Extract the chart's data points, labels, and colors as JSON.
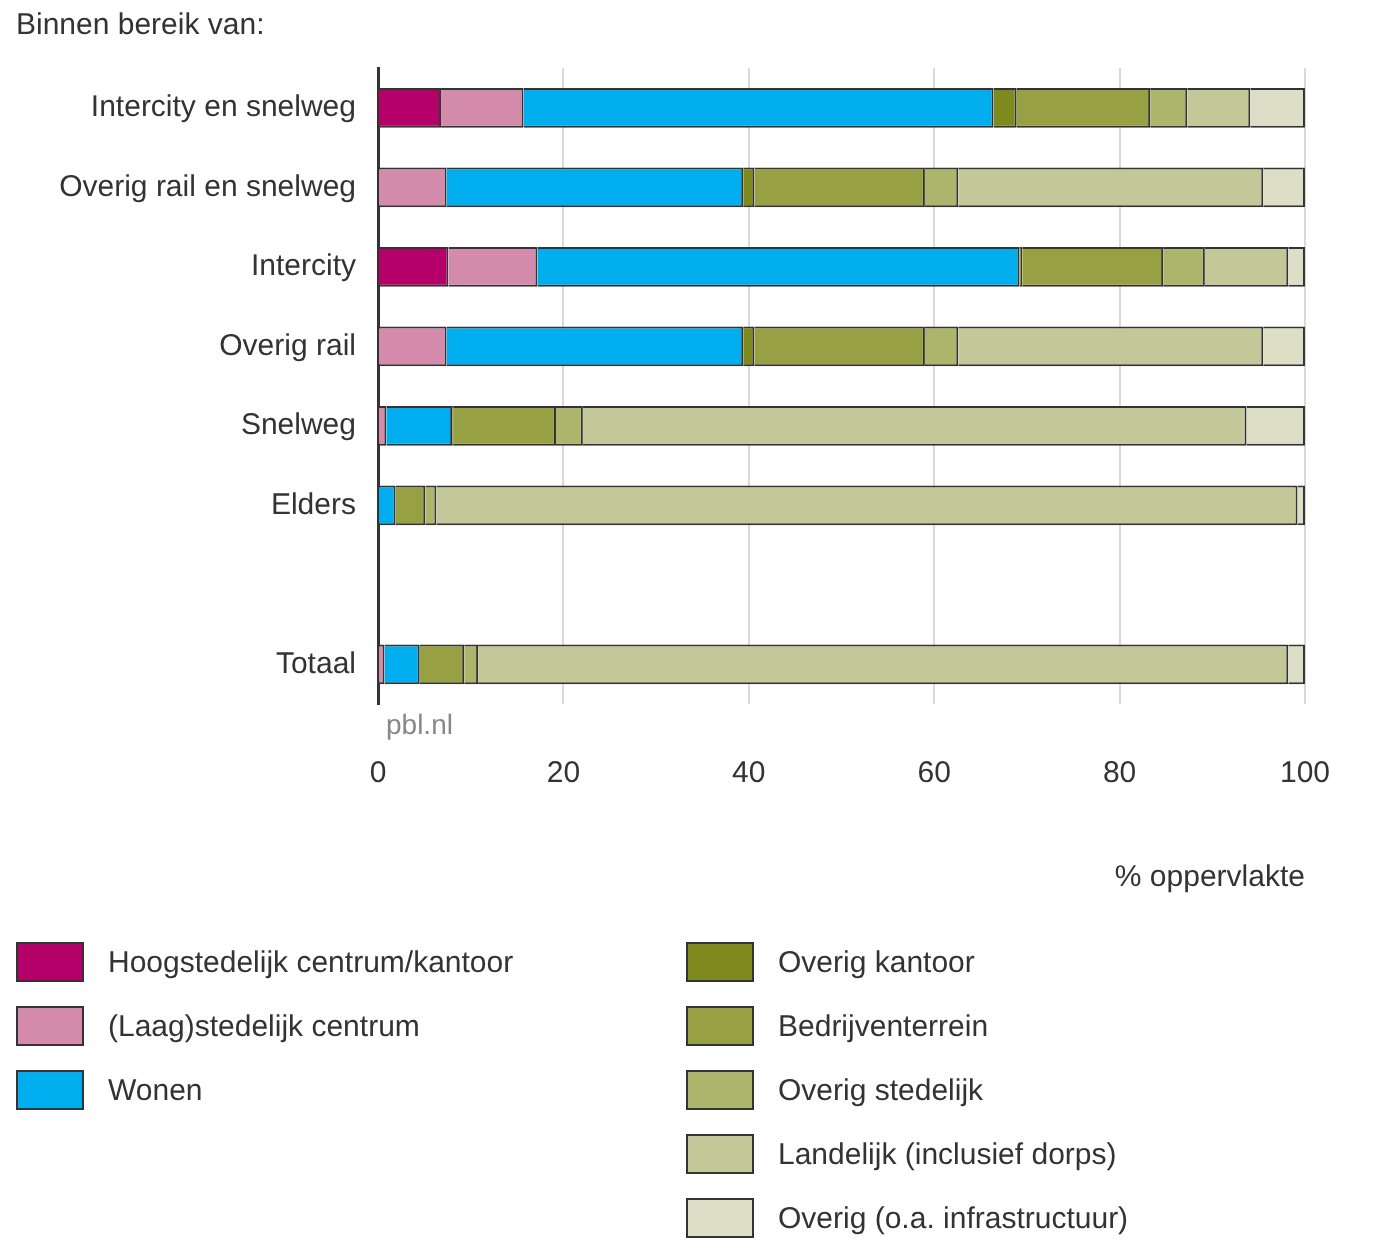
{
  "chart_data": {
    "type": "bar",
    "orientation": "horizontal",
    "stacked": true,
    "ylabel": "Binnen bereik van:",
    "xlabel": "% oppervlakte",
    "categories": [
      "Intercity en snelweg",
      "Overig rail en snelweg",
      "Intercity",
      "Overig rail",
      "Snelweg",
      "Elders",
      null,
      "Totaal"
    ],
    "series": [
      {
        "name": "Hoogstedelijk centrum/kantoor",
        "color": "#b5006a",
        "values": [
          6.8,
          null,
          7.6,
          null,
          0,
          0,
          null,
          0
        ]
      },
      {
        "name": "(Laag)stedelijk centrum",
        "color": "#d48aab",
        "values": [
          8.9,
          7.4,
          9.6,
          7.4,
          0.9,
          null,
          null,
          0.7
        ]
      },
      {
        "name": "Wonen",
        "color": "#00aeef",
        "values": [
          50.7,
          32.0,
          52.0,
          32.0,
          7.1,
          1.9,
          null,
          3.8
        ]
      },
      {
        "name": "Overig kantoor",
        "color": "#7f8a1e",
        "values": [
          2.5,
          1.2,
          0.3,
          1.2,
          0.1,
          0,
          null,
          0
        ]
      },
      {
        "name": "Bedrijventerrein",
        "color": "#97a043",
        "values": [
          14.4,
          18.4,
          15.2,
          18.4,
          11.1,
          3.2,
          null,
          4.8
        ]
      },
      {
        "name": "Overig stedelijk",
        "color": "#adb46c",
        "values": [
          4.0,
          3.6,
          4.5,
          3.6,
          2.9,
          1.2,
          null,
          1.5
        ]
      },
      {
        "name": "Landelijk (inclusief dorps)",
        "color": "#c4c899",
        "values": [
          6.8,
          32.9,
          9.0,
          32.9,
          71.6,
          92.9,
          null,
          87.4
        ]
      },
      {
        "name": "Overig (o.a. infrastructuur)",
        "color": "#dcdfc5",
        "values": [
          5.9,
          4.5,
          1.8,
          4.5,
          6.3,
          0.8,
          null,
          1.8
        ]
      }
    ],
    "xlim": [
      0,
      100
    ],
    "xticks": [
      0,
      20,
      40,
      60,
      80,
      100
    ],
    "grid": "x",
    "legend": "bottom",
    "annotations": [
      "pbl.nl"
    ]
  }
}
